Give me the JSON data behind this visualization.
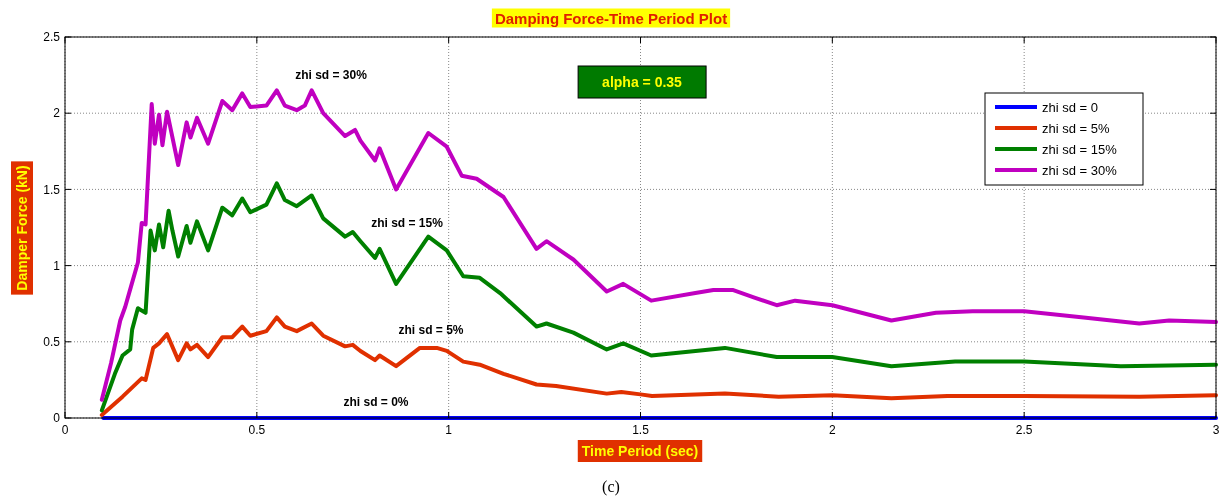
{
  "chart_data": {
    "type": "line",
    "title": "Damping Force-Time Period Plot",
    "xlabel": "Time Period (sec)",
    "ylabel": "Damper Force (kN)",
    "xlim": [
      0,
      3
    ],
    "xticks": [
      0,
      0.5,
      1,
      1.5,
      2,
      2.5,
      3
    ],
    "ylim": [
      0,
      2.5
    ],
    "yticks": [
      0,
      0.5,
      1,
      1.5,
      2,
      2.5
    ],
    "grid": true,
    "legend": "top right",
    "line_style": "solid",
    "series": [
      {
        "name": "zhi sd = 0",
        "color": "#0000ff",
        "x": [
          0.1,
          0.5,
          1,
          1.5,
          2,
          2.5,
          3
        ],
        "values": [
          0,
          0,
          0,
          0,
          0,
          0,
          0
        ]
      },
      {
        "name": "zhi sd = 5%",
        "color": "#e03000",
        "x": [
          0.096,
          0.15,
          0.2,
          0.21,
          0.23,
          0.245,
          0.266,
          0.295,
          0.317,
          0.327,
          0.344,
          0.373,
          0.41,
          0.436,
          0.462,
          0.483,
          0.525,
          0.552,
          0.573,
          0.604,
          0.643,
          0.673,
          0.73,
          0.75,
          0.77,
          0.808,
          0.82,
          0.863,
          0.925,
          0.969,
          0.995,
          1.038,
          1.081,
          1.143,
          1.229,
          1.28,
          1.412,
          1.45,
          1.5,
          1.53,
          1.72,
          1.86,
          2.0,
          2.154,
          2.3,
          2.5,
          2.8,
          3.0
        ],
        "values": [
          0.02,
          0.14,
          0.26,
          0.25,
          0.46,
          0.49,
          0.55,
          0.38,
          0.49,
          0.45,
          0.48,
          0.4,
          0.53,
          0.53,
          0.6,
          0.54,
          0.57,
          0.66,
          0.6,
          0.57,
          0.62,
          0.54,
          0.47,
          0.48,
          0.44,
          0.38,
          0.41,
          0.34,
          0.46,
          0.46,
          0.44,
          0.37,
          0.35,
          0.29,
          0.22,
          0.21,
          0.16,
          0.17,
          0.155,
          0.145,
          0.16,
          0.14,
          0.15,
          0.13,
          0.145,
          0.145,
          0.14,
          0.15
        ]
      },
      {
        "name": "zhi sd = 15%",
        "color": "#008000",
        "x": [
          0.096,
          0.13,
          0.15,
          0.17,
          0.175,
          0.19,
          0.21,
          0.223,
          0.234,
          0.245,
          0.256,
          0.27,
          0.28,
          0.295,
          0.317,
          0.327,
          0.344,
          0.373,
          0.41,
          0.436,
          0.462,
          0.483,
          0.525,
          0.552,
          0.573,
          0.604,
          0.643,
          0.673,
          0.73,
          0.75,
          0.77,
          0.808,
          0.82,
          0.863,
          0.947,
          0.995,
          1.038,
          1.081,
          1.134,
          1.229,
          1.255,
          1.325,
          1.412,
          1.455,
          1.528,
          1.72,
          1.855,
          2.0,
          2.154,
          2.32,
          2.5,
          2.752,
          3.0
        ],
        "values": [
          0.05,
          0.29,
          0.41,
          0.45,
          0.58,
          0.72,
          0.69,
          1.23,
          1.1,
          1.27,
          1.12,
          1.36,
          1.23,
          1.06,
          1.26,
          1.15,
          1.29,
          1.1,
          1.38,
          1.33,
          1.44,
          1.35,
          1.4,
          1.54,
          1.43,
          1.39,
          1.46,
          1.31,
          1.19,
          1.22,
          1.16,
          1.05,
          1.11,
          0.88,
          1.19,
          1.1,
          0.93,
          0.92,
          0.82,
          0.6,
          0.62,
          0.56,
          0.45,
          0.49,
          0.41,
          0.46,
          0.4,
          0.4,
          0.34,
          0.37,
          0.37,
          0.34,
          0.35
        ]
      },
      {
        "name": "zhi sd = 30%",
        "color": "#c000c0",
        "x": [
          0.096,
          0.12,
          0.144,
          0.157,
          0.174,
          0.19,
          0.2,
          0.21,
          0.226,
          0.234,
          0.245,
          0.254,
          0.266,
          0.295,
          0.317,
          0.327,
          0.344,
          0.373,
          0.41,
          0.436,
          0.462,
          0.483,
          0.525,
          0.552,
          0.573,
          0.604,
          0.625,
          0.643,
          0.673,
          0.73,
          0.756,
          0.77,
          0.808,
          0.82,
          0.863,
          0.947,
          0.995,
          1.034,
          1.073,
          1.143,
          1.229,
          1.255,
          1.325,
          1.412,
          1.455,
          1.528,
          1.643,
          1.69,
          1.74,
          1.797,
          1.855,
          1.903,
          2.0,
          2.154,
          2.27,
          2.366,
          2.5,
          2.655,
          2.8,
          2.878,
          3.0
        ],
        "values": [
          0.12,
          0.36,
          0.64,
          0.73,
          0.88,
          1.02,
          1.28,
          1.27,
          2.06,
          1.8,
          1.99,
          1.79,
          2.01,
          1.66,
          1.94,
          1.84,
          1.97,
          1.8,
          2.08,
          2.02,
          2.13,
          2.04,
          2.05,
          2.15,
          2.05,
          2.02,
          2.05,
          2.15,
          2.0,
          1.85,
          1.89,
          1.82,
          1.69,
          1.77,
          1.5,
          1.87,
          1.78,
          1.59,
          1.57,
          1.45,
          1.11,
          1.16,
          1.04,
          0.83,
          0.88,
          0.77,
          0.82,
          0.84,
          0.84,
          0.79,
          0.74,
          0.77,
          0.74,
          0.64,
          0.69,
          0.7,
          0.7,
          0.66,
          0.62,
          0.64,
          0.63
        ]
      }
    ],
    "annotations": [
      "zhi sd = 30%",
      "zhi sd = 15%",
      "zhi sd = 5%",
      "zhi sd = 0%",
      "alpha = 0.35",
      "(c)"
    ]
  }
}
